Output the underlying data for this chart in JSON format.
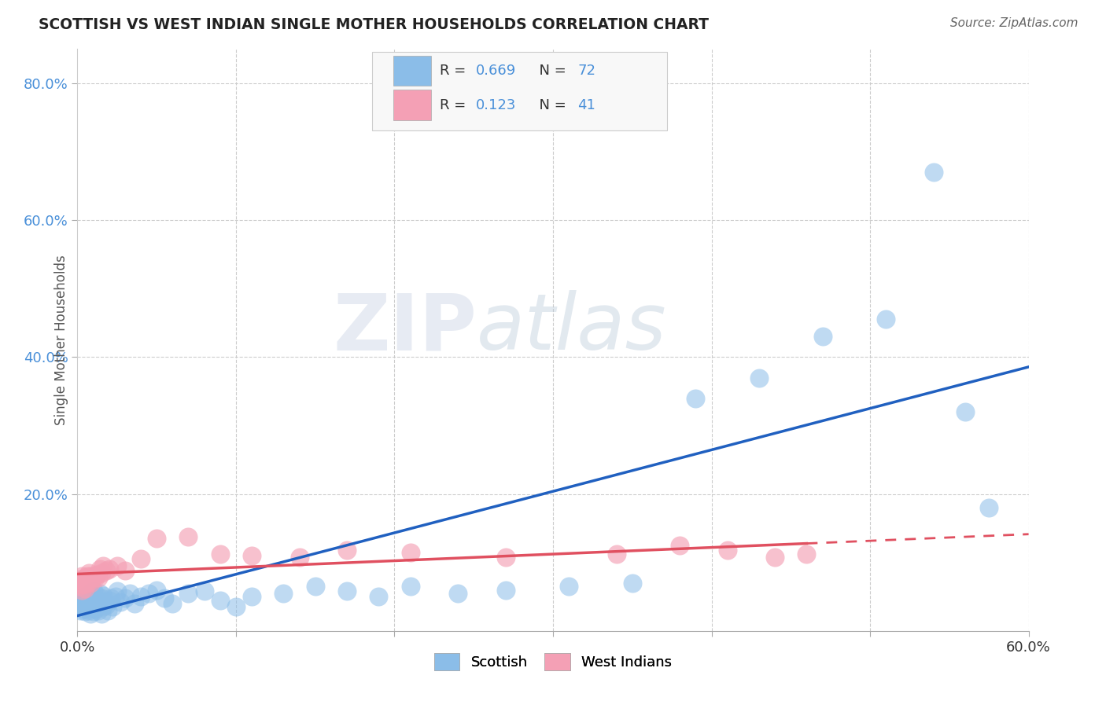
{
  "title": "SCOTTISH VS WEST INDIAN SINGLE MOTHER HOUSEHOLDS CORRELATION CHART",
  "source": "Source: ZipAtlas.com",
  "ylabel": "Single Mother Households",
  "xlim": [
    0.0,
    0.6
  ],
  "ylim": [
    0.0,
    0.85
  ],
  "ytick_positions": [
    0.2,
    0.4,
    0.6,
    0.8
  ],
  "ytick_labels": [
    "20.0%",
    "40.0%",
    "60.0%",
    "80.0%"
  ],
  "scottish_R": 0.669,
  "scottish_N": 72,
  "westindian_R": 0.123,
  "westindian_N": 41,
  "scottish_color": "#8bbde8",
  "westindian_color": "#f4a0b5",
  "scottish_line_color": "#2060c0",
  "westindian_line_color": "#e05060",
  "background_color": "#ffffff",
  "grid_color": "#cccccc",
  "watermark_zip": "ZIP",
  "watermark_atlas": "atlas",
  "scottish_x": [
    0.001,
    0.002,
    0.002,
    0.003,
    0.003,
    0.004,
    0.004,
    0.005,
    0.005,
    0.005,
    0.006,
    0.006,
    0.007,
    0.007,
    0.008,
    0.008,
    0.008,
    0.009,
    0.009,
    0.01,
    0.01,
    0.01,
    0.011,
    0.011,
    0.012,
    0.012,
    0.013,
    0.013,
    0.014,
    0.014,
    0.015,
    0.015,
    0.016,
    0.016,
    0.017,
    0.018,
    0.019,
    0.02,
    0.021,
    0.022,
    0.024,
    0.025,
    0.027,
    0.03,
    0.033,
    0.036,
    0.04,
    0.045,
    0.05,
    0.055,
    0.06,
    0.07,
    0.08,
    0.09,
    0.1,
    0.11,
    0.13,
    0.15,
    0.17,
    0.19,
    0.21,
    0.24,
    0.27,
    0.31,
    0.35,
    0.39,
    0.43,
    0.47,
    0.51,
    0.54,
    0.56,
    0.575
  ],
  "scottish_y": [
    0.035,
    0.04,
    0.03,
    0.038,
    0.045,
    0.032,
    0.042,
    0.028,
    0.038,
    0.05,
    0.035,
    0.045,
    0.03,
    0.048,
    0.025,
    0.04,
    0.055,
    0.035,
    0.05,
    0.028,
    0.042,
    0.058,
    0.032,
    0.048,
    0.038,
    0.052,
    0.03,
    0.045,
    0.04,
    0.055,
    0.025,
    0.048,
    0.035,
    0.052,
    0.042,
    0.038,
    0.03,
    0.045,
    0.048,
    0.035,
    0.05,
    0.058,
    0.042,
    0.048,
    0.055,
    0.04,
    0.05,
    0.055,
    0.06,
    0.048,
    0.04,
    0.055,
    0.058,
    0.045,
    0.035,
    0.05,
    0.055,
    0.065,
    0.058,
    0.05,
    0.065,
    0.055,
    0.06,
    0.065,
    0.07,
    0.34,
    0.37,
    0.43,
    0.455,
    0.67,
    0.32,
    0.18
  ],
  "westindian_x": [
    0.001,
    0.002,
    0.002,
    0.003,
    0.003,
    0.004,
    0.004,
    0.005,
    0.005,
    0.006,
    0.006,
    0.007,
    0.007,
    0.008,
    0.008,
    0.009,
    0.01,
    0.011,
    0.012,
    0.013,
    0.014,
    0.015,
    0.016,
    0.018,
    0.02,
    0.025,
    0.03,
    0.04,
    0.05,
    0.07,
    0.09,
    0.11,
    0.14,
    0.17,
    0.21,
    0.27,
    0.34,
    0.38,
    0.41,
    0.44,
    0.46
  ],
  "westindian_y": [
    0.065,
    0.07,
    0.075,
    0.06,
    0.08,
    0.068,
    0.075,
    0.062,
    0.078,
    0.07,
    0.08,
    0.075,
    0.085,
    0.07,
    0.08,
    0.075,
    0.08,
    0.078,
    0.082,
    0.078,
    0.09,
    0.085,
    0.095,
    0.088,
    0.09,
    0.095,
    0.088,
    0.105,
    0.135,
    0.138,
    0.112,
    0.11,
    0.108,
    0.118,
    0.115,
    0.108,
    0.112,
    0.125,
    0.118,
    0.108,
    0.112
  ]
}
